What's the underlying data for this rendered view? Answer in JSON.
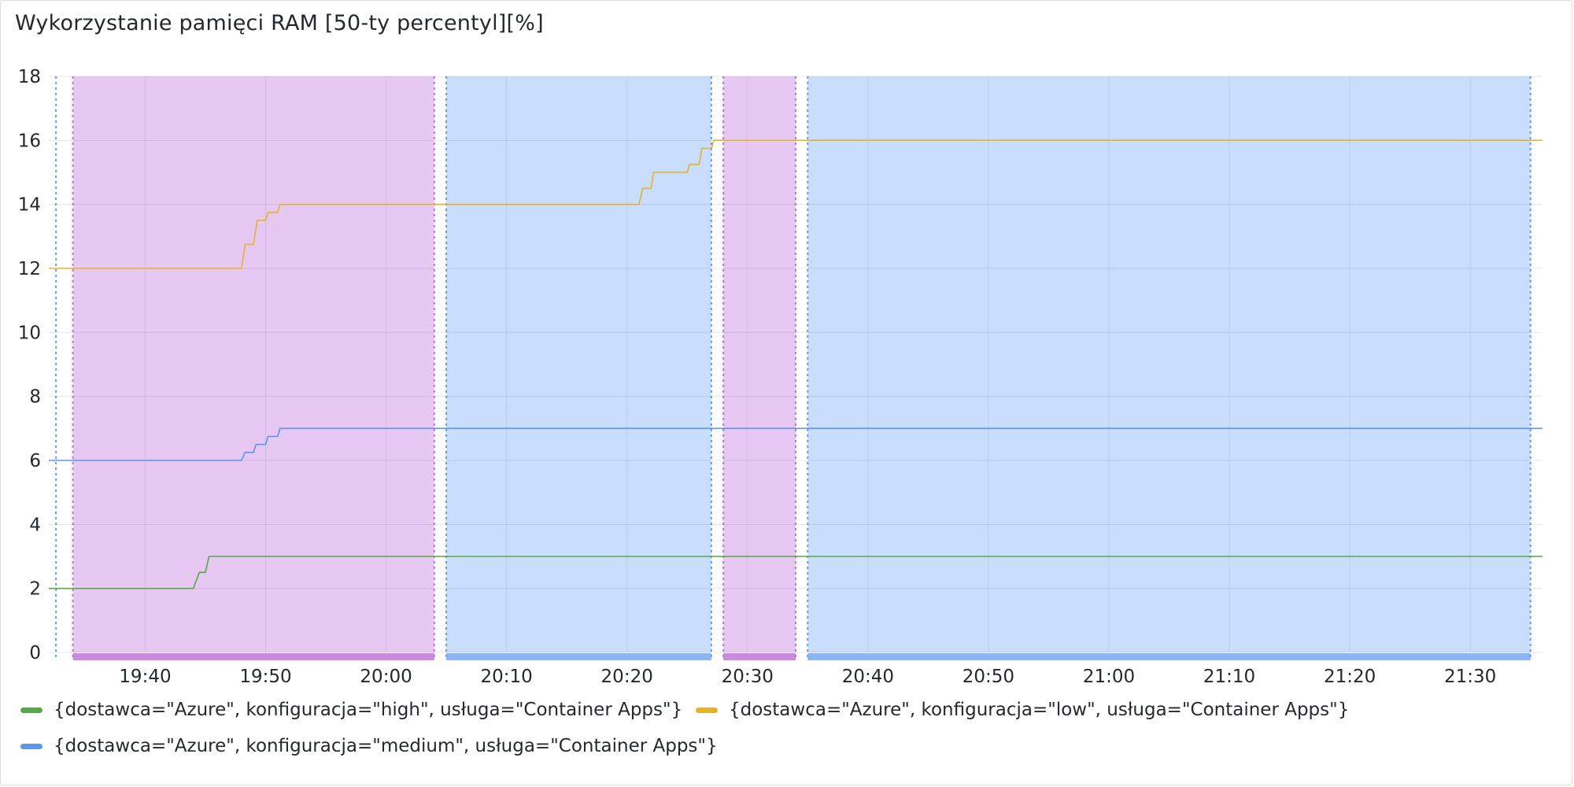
{
  "chart_data": {
    "type": "line",
    "title": "Wykorzystanie pamięci RAM [50-ty percentyl][%]",
    "xlabel": "",
    "ylabel": "",
    "ylim": [
      0,
      18
    ],
    "yticks": [
      0,
      2,
      4,
      6,
      8,
      10,
      12,
      14,
      16,
      18
    ],
    "xlim": [
      "19:32",
      "21:36"
    ],
    "xticks": [
      "19:40",
      "19:50",
      "20:00",
      "20:10",
      "20:20",
      "20:30",
      "20:40",
      "20:50",
      "21:00",
      "21:10",
      "21:20",
      "21:30"
    ],
    "grid": true,
    "legend_position": "bottom-left",
    "regions": [
      {
        "start": "19:34",
        "end": "20:04",
        "color": "#d9a7ec"
      },
      {
        "start": "20:05",
        "end": "20:27",
        "color": "#a8c8fa"
      },
      {
        "start": "20:28",
        "end": "20:34",
        "color": "#d9a7ec"
      },
      {
        "start": "20:35",
        "end": "21:35",
        "color": "#a8c8fa"
      }
    ],
    "series": [
      {
        "name": "{dostawca=\"Azure\", konfiguracja=\"high\", usługa=\"Container Apps\"}",
        "color": "#5aa64b",
        "points": [
          [
            "19:32",
            2
          ],
          [
            "19:44",
            2
          ],
          [
            "19:44.5",
            2.5
          ],
          [
            "19:45",
            2.5
          ],
          [
            "19:45.3",
            3
          ],
          [
            "21:36",
            3
          ]
        ]
      },
      {
        "name": "{dostawca=\"Azure\", konfiguracja=\"low\", usługa=\"Container Apps\"}",
        "color": "#e2b32b",
        "points": [
          [
            "19:32",
            12
          ],
          [
            "19:48",
            12
          ],
          [
            "19:48.3",
            12.75
          ],
          [
            "19:49",
            12.75
          ],
          [
            "19:49.3",
            13.5
          ],
          [
            "19:50",
            13.5
          ],
          [
            "19:50.2",
            13.75
          ],
          [
            "19:51",
            13.75
          ],
          [
            "19:51.2",
            14
          ],
          [
            "20:21",
            14
          ],
          [
            "20:21.3",
            14.5
          ],
          [
            "20:22",
            14.5
          ],
          [
            "20:22.2",
            15
          ],
          [
            "20:25",
            15
          ],
          [
            "20:25.2",
            15.25
          ],
          [
            "20:26",
            15.25
          ],
          [
            "20:26.2",
            15.75
          ],
          [
            "20:27",
            15.75
          ],
          [
            "20:27.2",
            16
          ],
          [
            "21:36",
            16
          ]
        ]
      },
      {
        "name": "{dostawca=\"Azure\", konfiguracja=\"medium\", usługa=\"Container Apps\"}",
        "color": "#5b95ec",
        "points": [
          [
            "19:32",
            6
          ],
          [
            "19:48",
            6
          ],
          [
            "19:48.3",
            6.25
          ],
          [
            "19:49",
            6.25
          ],
          [
            "19:49.2",
            6.5
          ],
          [
            "19:50",
            6.5
          ],
          [
            "19:50.2",
            6.75
          ],
          [
            "19:51",
            6.75
          ],
          [
            "19:51.2",
            7
          ],
          [
            "21:36",
            7
          ]
        ]
      }
    ]
  },
  "legend_colors": {
    "high": "#5aa64b",
    "low": "#e2b32b",
    "medium": "#5b95ec"
  }
}
